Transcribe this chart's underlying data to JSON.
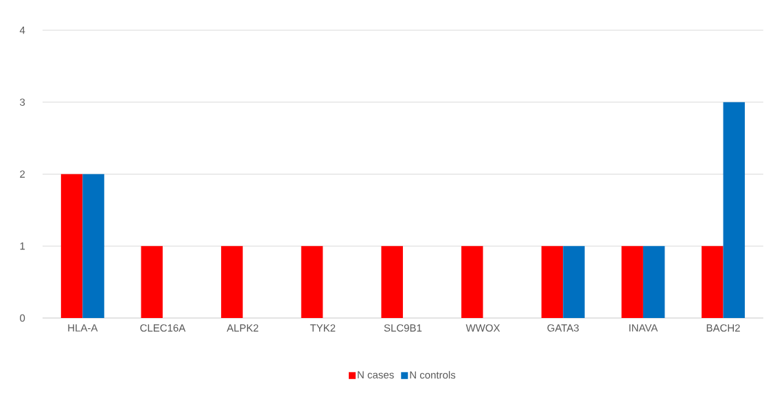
{
  "chart_data": {
    "type": "bar",
    "categories": [
      "HLA-A",
      "CLEC16A",
      "ALPK2",
      "TYK2",
      "SLC9B1",
      "WWOX",
      "GATA3",
      "INAVA",
      "BACH2"
    ],
    "series": [
      {
        "name": "N cases",
        "color": "#ff0000",
        "values": [
          2,
          1,
          1,
          1,
          1,
          1,
          1,
          1,
          1
        ]
      },
      {
        "name": "N controls",
        "color": "#0070c0",
        "values": [
          2,
          0,
          0,
          0,
          0,
          0,
          1,
          1,
          3
        ]
      }
    ],
    "ylim": [
      0,
      4
    ],
    "yticks": [
      0,
      1,
      2,
      3,
      4
    ],
    "grid": "y",
    "legend": "bottom"
  }
}
